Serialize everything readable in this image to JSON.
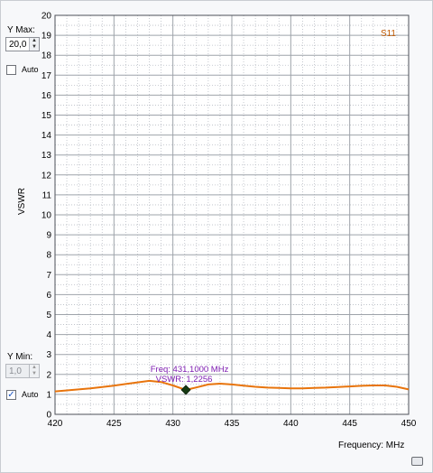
{
  "controls": {
    "y_max_label": "Y Max:",
    "y_max_value": "20,0",
    "y_max_auto_label": "Auto",
    "y_max_auto_checked": false,
    "y_min_label": "Y Min:",
    "y_min_value": "1,0",
    "y_min_auto_label": "Auto",
    "y_min_auto_checked": true
  },
  "colors": {
    "trace": "#e8740c",
    "marker": "#163a12",
    "marker_text": "#7d1bb0",
    "legend_text": "#c25a00",
    "grid_major": "#9ea3aa",
    "grid_minor": "#b8bcc4"
  },
  "chart_data": {
    "type": "line",
    "title": "",
    "xlabel": "Frequency: MHz",
    "ylabel": "VSWR",
    "xlim": [
      420,
      450
    ],
    "ylim": [
      0,
      20
    ],
    "x_ticks": [
      420,
      425,
      430,
      435,
      440,
      445,
      450
    ],
    "y_ticks": [
      0,
      1,
      2,
      3,
      4,
      5,
      6,
      7,
      8,
      9,
      10,
      11,
      12,
      13,
      14,
      15,
      16,
      17,
      18,
      19,
      20
    ],
    "grid": true,
    "legend_position": "top-right",
    "series": [
      {
        "name": "S11",
        "x": [
          420,
          421,
          422,
          423,
          424,
          425,
          426,
          427,
          428,
          429,
          430,
          431.1,
          432,
          433,
          434,
          435,
          436,
          437,
          438,
          439,
          440,
          441,
          442,
          443,
          444,
          445,
          446,
          447,
          448,
          449,
          450
        ],
        "y": [
          1.15,
          1.2,
          1.25,
          1.3,
          1.37,
          1.44,
          1.52,
          1.6,
          1.68,
          1.62,
          1.45,
          1.2256,
          1.35,
          1.5,
          1.54,
          1.5,
          1.44,
          1.38,
          1.34,
          1.32,
          1.3,
          1.3,
          1.32,
          1.34,
          1.37,
          1.4,
          1.43,
          1.45,
          1.45,
          1.38,
          1.25
        ]
      }
    ],
    "marker": {
      "x": 431.1,
      "y": 1.2256,
      "freq_text": "Freq: 431,1000 MHz",
      "vswr_text": "VSWR: 1,2256"
    }
  }
}
